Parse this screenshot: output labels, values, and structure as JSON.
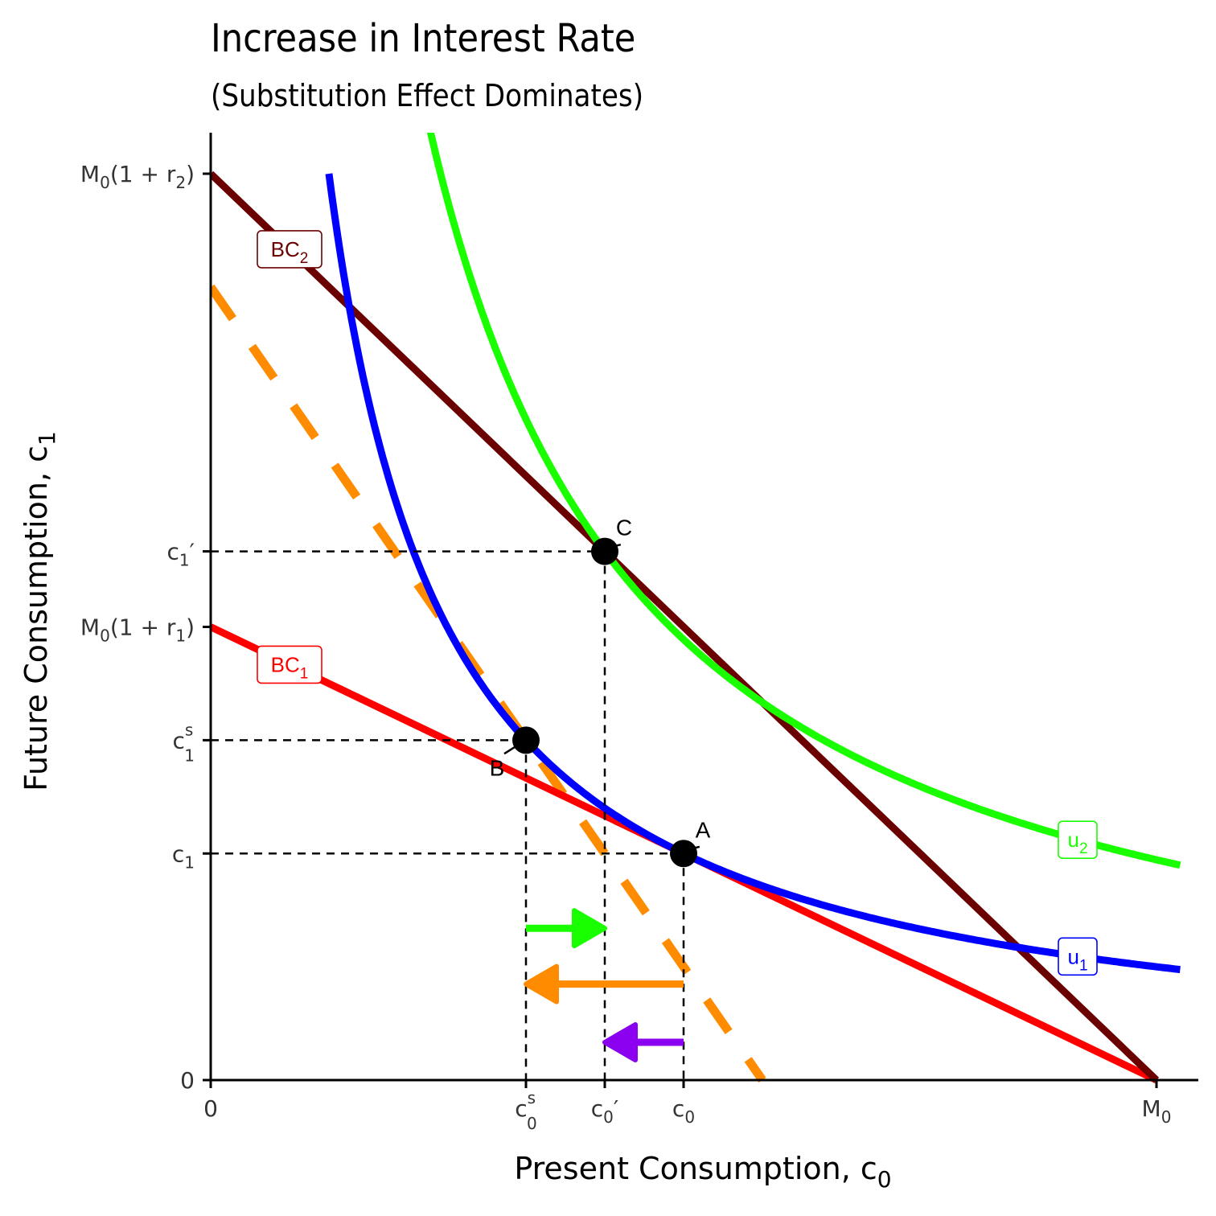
{
  "chart_data": {
    "type": "line",
    "title": "Increase in Interest Rate",
    "subtitle": "(Substitution Effect Dominates)",
    "xlabel": {
      "text": "Present Consumption, c",
      "sub": "0"
    },
    "ylabel": {
      "text": "Future Consumption, c",
      "sub": "1"
    },
    "xlim": [
      0,
      12
    ],
    "ylim": [
      0,
      11.5
    ],
    "x_ticks": [
      {
        "value": 0,
        "base": "0",
        "sub": "",
        "sup": "",
        "prime": ""
      },
      {
        "value": 4,
        "base": "c",
        "sub": "0",
        "sup": "s",
        "prime": ""
      },
      {
        "value": 5,
        "base": "c",
        "sub": "0",
        "sup": "",
        "prime": "′"
      },
      {
        "value": 6,
        "base": "c",
        "sub": "0",
        "sup": "",
        "prime": ""
      },
      {
        "value": 12,
        "base": "M",
        "sub": "0",
        "sup": "",
        "prime": ""
      }
    ],
    "y_ticks": [
      {
        "value": 0,
        "kind": "plain",
        "base": "0",
        "sub": "",
        "sup": "",
        "prime": ""
      },
      {
        "value": 2.88,
        "kind": "plain",
        "base": "c",
        "sub": "1",
        "sup": "",
        "prime": ""
      },
      {
        "value": 4.32,
        "kind": "plain",
        "base": "c",
        "sub": "1",
        "sup": "s",
        "prime": ""
      },
      {
        "value": 5.76,
        "kind": "formula",
        "base": "M",
        "sub": "0",
        "rate_sub": "1"
      },
      {
        "value": 6.72,
        "kind": "plain",
        "base": "c",
        "sub": "1",
        "sup": "",
        "prime": "′"
      },
      {
        "value": 11.52,
        "kind": "formula",
        "base": "M",
        "sub": "0",
        "rate_sub": "2"
      }
    ],
    "budget_lines": [
      {
        "name": "BC",
        "sub": "1",
        "color": "#ff0000",
        "x0": 0,
        "y0": 5.76,
        "x1": 12,
        "y1": 0,
        "label_x": 1.0
      },
      {
        "name": "BC",
        "sub": "2",
        "color": "#6b0000",
        "x0": 0,
        "y0": 11.52,
        "x1": 12,
        "y1": 0,
        "label_x": 1.0
      }
    ],
    "compensated_line": {
      "color": "#ff8c00",
      "slope": -1.44,
      "intercept": 10.08,
      "dashed": true
    },
    "indifference_curves": [
      {
        "name": "u",
        "sub": "1",
        "color": "#0000ff",
        "k": 17.28,
        "x_start": 1.5,
        "x_end": 12.3,
        "label_x": 11.0
      },
      {
        "name": "u",
        "sub": "2",
        "color": "#1aff00",
        "k": 33.6,
        "x_start": 2.0,
        "x_end": 12.3,
        "label_x": 11.0
      }
    ],
    "points": [
      {
        "label": "A",
        "x": 6,
        "y": 2.88
      },
      {
        "label": "B",
        "x": 4,
        "y": 4.32
      },
      {
        "label": "C",
        "x": 5,
        "y": 6.72
      }
    ],
    "arrows": [
      {
        "effect": "substitution",
        "color": "#1aff00",
        "from_x": 4,
        "to_x": 5,
        "y": 1.93
      },
      {
        "effect": "income",
        "color": "#ff8c00",
        "from_x": 6,
        "to_x": 4,
        "y": 1.22
      },
      {
        "effect": "total",
        "color": "#8b00ee",
        "from_x": 6,
        "to_x": 5,
        "y": 0.48
      }
    ]
  }
}
